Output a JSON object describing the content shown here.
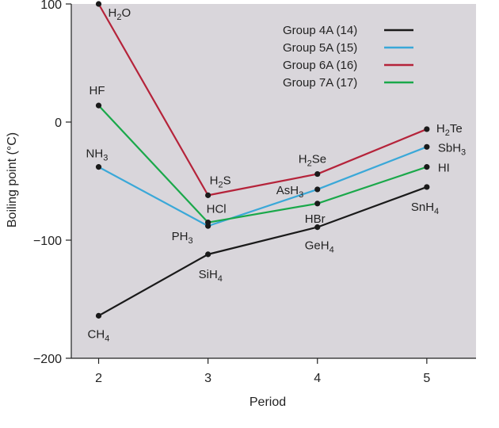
{
  "chart_data": {
    "type": "line",
    "title": "",
    "xlabel": "Period",
    "ylabel": "Boiling point (°C)",
    "x": [
      2,
      3,
      4,
      5
    ],
    "xlim": [
      1.75,
      5.45
    ],
    "ylim": [
      -200,
      100
    ],
    "x_ticks": [
      "2",
      "3",
      "4",
      "5"
    ],
    "y_ticks": [
      "100",
      "0",
      "−100",
      "−200"
    ],
    "y_tick_values": [
      100,
      0,
      -100,
      -200
    ],
    "legend_position": "top-right",
    "grid": false,
    "background": "#d9d6db",
    "series": [
      {
        "name": "Group 4A (14)",
        "color": "#1a1a1a",
        "values": [
          -164,
          -112,
          -89,
          -55
        ],
        "labels": [
          {
            "base": "CH",
            "sub": "4",
            "tail": ""
          },
          {
            "base": "SiH",
            "sub": "4",
            "tail": ""
          },
          {
            "base": "GeH",
            "sub": "4",
            "tail": ""
          },
          {
            "base": "SnH",
            "sub": "4",
            "tail": ""
          }
        ]
      },
      {
        "name": "Group 5A (15)",
        "color": "#3aa8d8",
        "values": [
          -38,
          -88,
          -57,
          -21
        ],
        "labels": [
          {
            "base": "NH",
            "sub": "3",
            "tail": ""
          },
          {
            "base": "PH",
            "sub": "3",
            "tail": ""
          },
          {
            "base": "AsH",
            "sub": "3",
            "tail": ""
          },
          {
            "base": "SbH",
            "sub": "3",
            "tail": ""
          }
        ]
      },
      {
        "name": "Group 6A (16)",
        "color": "#b5233a",
        "values": [
          100,
          -62,
          -44,
          -6
        ],
        "labels": [
          {
            "base": "H",
            "sub": "2",
            "tail": "O"
          },
          {
            "base": "H",
            "sub": "2",
            "tail": "S"
          },
          {
            "base": "H",
            "sub": "2",
            "tail": "Se"
          },
          {
            "base": "H",
            "sub": "2",
            "tail": "Te"
          }
        ]
      },
      {
        "name": "Group 7A (17)",
        "color": "#1aa84a",
        "values": [
          14,
          -85,
          -69,
          -38
        ],
        "labels": [
          {
            "base": "HF",
            "sub": "",
            "tail": ""
          },
          {
            "base": "HCl",
            "sub": "",
            "tail": ""
          },
          {
            "base": "HBr",
            "sub": "",
            "tail": ""
          },
          {
            "base": "HI",
            "sub": "",
            "tail": ""
          }
        ]
      }
    ]
  }
}
